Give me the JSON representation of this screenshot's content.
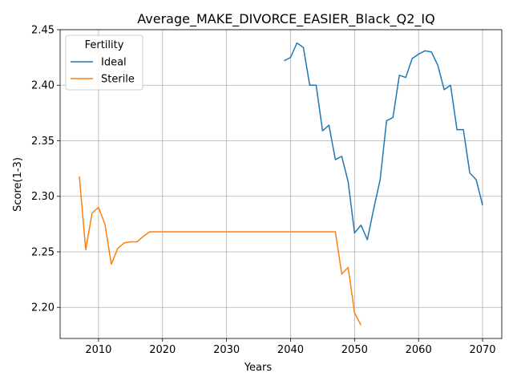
{
  "chart_data": {
    "type": "line",
    "title": "Average_MAKE_DIVORCE_EASIER_Black_Q2_IQ",
    "xlabel": "Years",
    "ylabel": "Score(1-3)",
    "xlim": [
      2004,
      2073
    ],
    "ylim": [
      2.172,
      2.45
    ],
    "xticks": [
      2010,
      2020,
      2030,
      2040,
      2050,
      2060,
      2070
    ],
    "yticks": [
      2.2,
      2.25,
      2.3,
      2.35,
      2.4,
      2.45
    ],
    "ytick_labels": [
      "2.20",
      "2.25",
      "2.30",
      "2.35",
      "2.40",
      "2.45"
    ],
    "grid": true,
    "legend": {
      "title": "Fertility",
      "placement": "top-left"
    },
    "series": [
      {
        "name": "Ideal",
        "color": "#1f77b4",
        "x": [
          2039,
          2040,
          2041,
          2042,
          2043,
          2044,
          2045,
          2046,
          2047,
          2048,
          2049,
          2050,
          2051,
          2052,
          2053,
          2054,
          2055,
          2056,
          2057,
          2058,
          2059,
          2060,
          2061,
          2062,
          2063,
          2064,
          2065,
          2066,
          2067,
          2068,
          2069,
          2070
        ],
        "y": [
          2.422,
          2.425,
          2.438,
          2.434,
          2.4,
          2.4,
          2.359,
          2.364,
          2.333,
          2.336,
          2.313,
          2.267,
          2.274,
          2.261,
          2.289,
          2.315,
          2.368,
          2.371,
          2.409,
          2.407,
          2.424,
          2.428,
          2.431,
          2.43,
          2.418,
          2.396,
          2.4,
          2.36,
          2.36,
          2.321,
          2.315,
          2.292
        ]
      },
      {
        "name": "Sterile",
        "color": "#ff7f0e",
        "x": [
          2007,
          2008,
          2009,
          2010,
          2011,
          2012,
          2013,
          2014,
          2015,
          2016,
          2017,
          2018,
          2019,
          2020,
          2025,
          2030,
          2035,
          2040,
          2045,
          2046,
          2047,
          2048,
          2049,
          2050,
          2051
        ],
        "y": [
          2.318,
          2.252,
          2.285,
          2.29,
          2.275,
          2.239,
          2.253,
          2.258,
          2.259,
          2.259,
          2.264,
          2.268,
          2.268,
          2.268,
          2.268,
          2.268,
          2.268,
          2.268,
          2.268,
          2.268,
          2.268,
          2.23,
          2.236,
          2.195,
          2.184
        ]
      }
    ]
  }
}
